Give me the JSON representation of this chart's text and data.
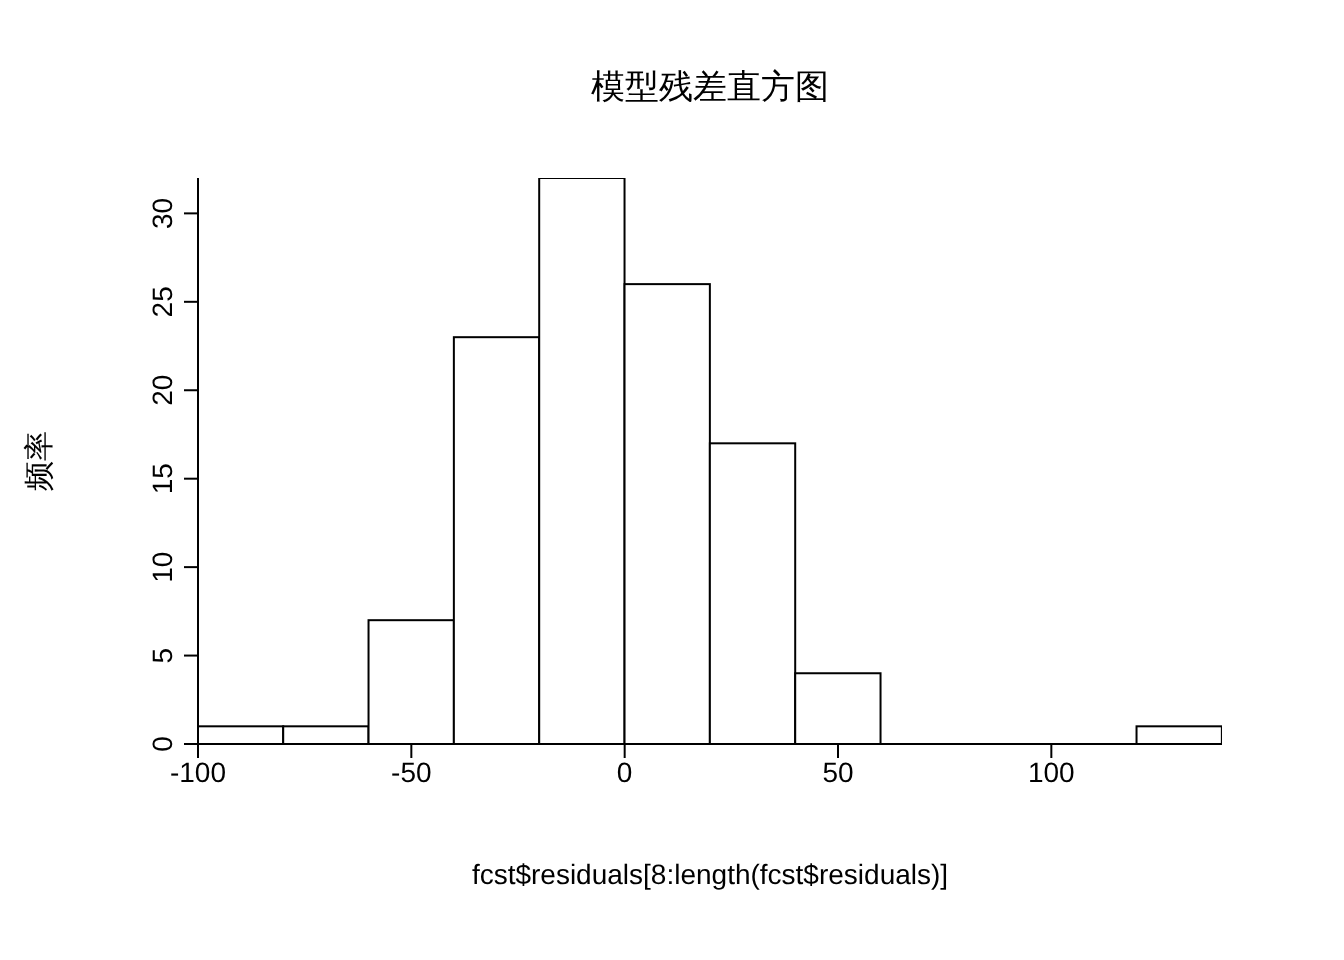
{
  "chart_data": {
    "type": "histogram",
    "title": "模型残差直方图",
    "xlabel": "fcst$residuals[8:length(fcst$residuals)]",
    "ylabel": "频率",
    "bins": [
      -100,
      -80,
      -60,
      -40,
      -20,
      0,
      20,
      40,
      60,
      80,
      100,
      120,
      140
    ],
    "values": [
      1,
      1,
      7,
      23,
      32,
      26,
      17,
      4,
      0,
      0,
      0,
      1
    ],
    "color": "#ffffff",
    "xlim": [
      -100,
      140
    ],
    "xticks": [
      -100,
      -50,
      0,
      50,
      100
    ],
    "ylim": [
      0,
      32
    ],
    "yticks": [
      0,
      5,
      10,
      15,
      20,
      25,
      30
    ]
  }
}
